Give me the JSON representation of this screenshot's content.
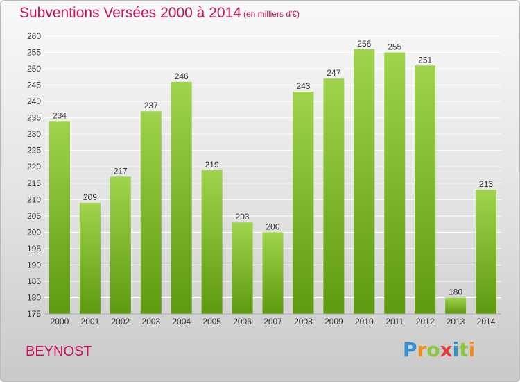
{
  "title": "Subventions Versées 2000 à 2014",
  "subtitle": "(en milliers d'€)",
  "place": "BEYNOST",
  "logo": "Proxiti",
  "colors": {
    "title": "#c8105a",
    "bar_top": "#9fd44c",
    "bar_bottom": "#5e9a10",
    "grid": "#ffffff"
  },
  "chart_data": {
    "type": "bar",
    "categories": [
      "2000",
      "2001",
      "2002",
      "2003",
      "2004",
      "2005",
      "2006",
      "2007",
      "2008",
      "2009",
      "2010",
      "2011",
      "2012",
      "2013",
      "2014"
    ],
    "values": [
      234,
      209,
      217,
      237,
      246,
      219,
      203,
      200,
      243,
      247,
      256,
      255,
      251,
      180,
      213
    ],
    "ylim": [
      175,
      260
    ],
    "ytick_step": 5,
    "grid": true,
    "xlabel": "",
    "ylabel": ""
  }
}
